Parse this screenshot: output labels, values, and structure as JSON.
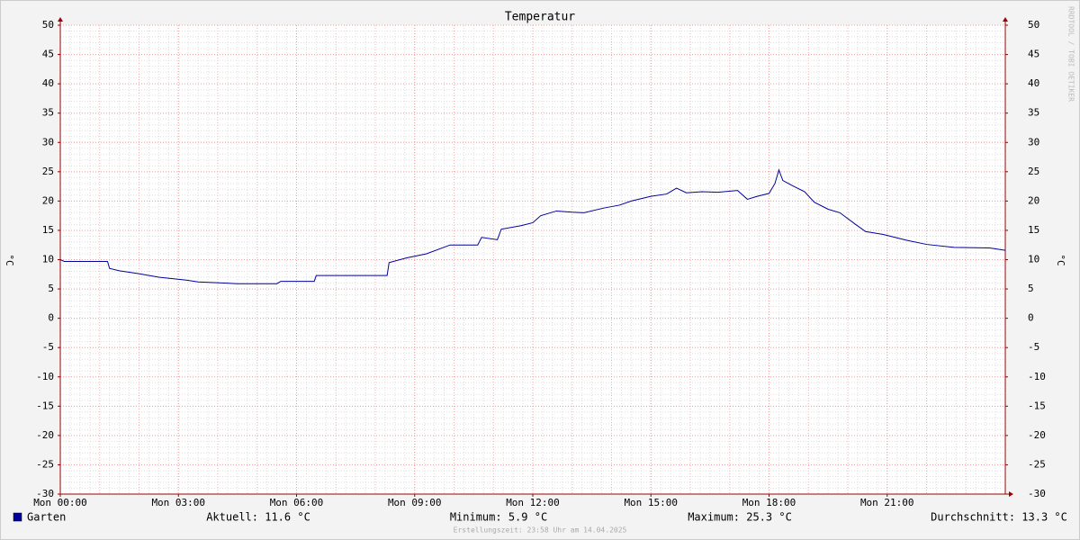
{
  "chart_data": {
    "type": "line",
    "title": "Temperatur",
    "y_label": "°C",
    "y2_label": "°C",
    "watermark": "RRDTOOL / TOBI OETIKER",
    "footer": "Erstellungszeit: 23:58 Uhr am 14.04.2025",
    "xlim": [
      0,
      24
    ],
    "xticks": [
      {
        "value": 0,
        "label": "Mon 00:00"
      },
      {
        "value": 3,
        "label": "Mon 03:00"
      },
      {
        "value": 6,
        "label": "Mon 06:00"
      },
      {
        "value": 9,
        "label": "Mon 09:00"
      },
      {
        "value": 12,
        "label": "Mon 12:00"
      },
      {
        "value": 15,
        "label": "Mon 15:00"
      },
      {
        "value": 18,
        "label": "Mon 18:00"
      },
      {
        "value": 21,
        "label": "Mon 21:00"
      }
    ],
    "ylim": [
      -30,
      50
    ],
    "yticks": [
      -30,
      -25,
      -20,
      -15,
      -10,
      -5,
      0,
      5,
      10,
      15,
      20,
      25,
      30,
      35,
      40,
      45,
      50
    ],
    "y2lim": [
      -30,
      50
    ],
    "y2ticks": [
      -30,
      -25,
      -20,
      -15,
      -10,
      -5,
      0,
      5,
      10,
      15,
      20,
      25,
      30,
      35,
      40,
      45,
      50
    ],
    "grid": true,
    "x": [
      0,
      0.1,
      1.2,
      1.25,
      1.5,
      2.0,
      2.5,
      3.2,
      3.5,
      4.5,
      5.5,
      5.6,
      6.45,
      6.5,
      8.3,
      8.35,
      8.8,
      9.3,
      9.9,
      10.6,
      10.7,
      11.1,
      11.2,
      11.7,
      12.0,
      12.2,
      12.6,
      13.0,
      13.3,
      13.8,
      14.2,
      14.5,
      15.0,
      15.4,
      15.65,
      15.9,
      16.3,
      16.7,
      17.2,
      17.45,
      17.7,
      18.0,
      18.15,
      18.25,
      18.35,
      18.6,
      18.9,
      19.15,
      19.5,
      19.8,
      20.2,
      20.45,
      20.9,
      21.5,
      22.0,
      22.7,
      23.6,
      24
    ],
    "series": [
      {
        "name": "Garten",
        "color": "#00009c",
        "values": [
          10,
          9.7,
          9.7,
          8.5,
          8.1,
          7.6,
          7.0,
          6.5,
          6.2,
          5.9,
          5.9,
          6.3,
          6.3,
          7.3,
          7.3,
          9.5,
          10.3,
          11.0,
          12.5,
          12.5,
          13.8,
          13.4,
          15.2,
          15.8,
          16.3,
          17.5,
          18.3,
          18.1,
          18.0,
          18.8,
          19.3,
          20.0,
          20.8,
          21.2,
          22.2,
          21.4,
          21.6,
          21.5,
          21.8,
          20.3,
          20.8,
          21.3,
          23.0,
          25.3,
          23.5,
          22.6,
          21.6,
          19.8,
          18.6,
          18.0,
          16.0,
          14.8,
          14.3,
          13.3,
          12.6,
          12.1,
          12.0,
          11.6
        ]
      }
    ],
    "stats": [
      "Aktuell: 11.6 °C",
      "Minimum: 5.9 °C",
      "Maximum: 25.3 °C",
      "Durchschnitt: 13.3 °C"
    ]
  }
}
